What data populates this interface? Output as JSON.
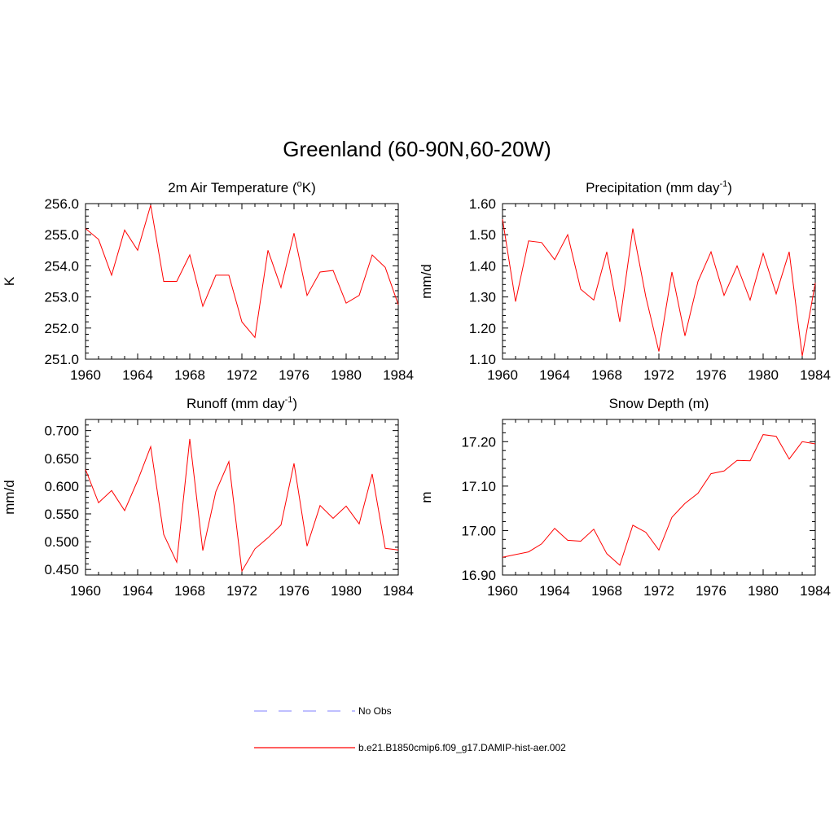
{
  "figure": {
    "title": "Greenland (60-90N,60-20W)"
  },
  "legend": {
    "items": [
      {
        "label": "No Obs",
        "color": "#9999ff",
        "style": "dashed"
      },
      {
        "label": "b.e21.B1850cmip6.f09_g17.DAMIP-hist-aer.002",
        "color": "#ff0000",
        "style": "solid"
      }
    ]
  },
  "chart_data": [
    {
      "type": "line",
      "title": "2m Air Temperature (°K)",
      "title_parts": [
        "2m Air Temperature (",
        "o",
        "K)"
      ],
      "ylabel": "K",
      "xlim": [
        1960,
        1984
      ],
      "ylim": [
        251.0,
        256.0
      ],
      "xticks": [
        "1960",
        "1964",
        "1968",
        "1972",
        "1976",
        "1980",
        "1984"
      ],
      "yticks": [
        "251.0",
        "252.0",
        "253.0",
        "254.0",
        "255.0",
        "256.0"
      ],
      "series": [
        {
          "color": "#ff0000",
          "x": [
            1960,
            1961,
            1962,
            1963,
            1964,
            1965,
            1966,
            1967,
            1968,
            1969,
            1970,
            1971,
            1972,
            1973,
            1974,
            1975,
            1976,
            1977,
            1978,
            1979,
            1980,
            1981,
            1982,
            1983,
            1984
          ],
          "y": [
            255.2,
            254.85,
            253.7,
            255.15,
            254.5,
            255.95,
            253.5,
            253.5,
            254.35,
            252.7,
            253.7,
            253.7,
            252.2,
            251.7,
            254.5,
            253.3,
            255.05,
            253.05,
            253.8,
            253.85,
            252.8,
            253.05,
            254.35,
            253.95,
            252.75
          ]
        }
      ]
    },
    {
      "type": "line",
      "title": "Precipitation (mm day-1)",
      "title_parts": [
        "Precipitation (mm day",
        "-1",
        ")"
      ],
      "ylabel": "mm/d",
      "xlim": [
        1960,
        1984
      ],
      "ylim": [
        1.1,
        1.6
      ],
      "xticks": [
        "1960",
        "1964",
        "1968",
        "1972",
        "1976",
        "1980",
        "1984"
      ],
      "yticks": [
        "1.10",
        "1.20",
        "1.30",
        "1.40",
        "1.50",
        "1.60"
      ],
      "series": [
        {
          "color": "#ff0000",
          "x": [
            1960,
            1961,
            1962,
            1963,
            1964,
            1965,
            1966,
            1967,
            1968,
            1969,
            1970,
            1971,
            1972,
            1973,
            1974,
            1975,
            1976,
            1977,
            1978,
            1979,
            1980,
            1981,
            1982,
            1983,
            1984
          ],
          "y": [
            1.55,
            1.285,
            1.48,
            1.475,
            1.42,
            1.5,
            1.325,
            1.29,
            1.445,
            1.22,
            1.52,
            1.3,
            1.125,
            1.38,
            1.175,
            1.35,
            1.445,
            1.305,
            1.4,
            1.29,
            1.44,
            1.31,
            1.445,
            1.11,
            1.345
          ]
        }
      ]
    },
    {
      "type": "line",
      "title": "Runoff (mm day-1)",
      "title_parts": [
        "Runoff (mm day",
        "-1",
        ")"
      ],
      "ylabel": "mm/d",
      "xlim": [
        1960,
        1984
      ],
      "ylim": [
        0.44,
        0.72
      ],
      "xticks": [
        "1960",
        "1964",
        "1968",
        "1972",
        "1976",
        "1980",
        "1984"
      ],
      "yticks": [
        "0.450",
        "0.500",
        "0.550",
        "0.600",
        "0.650",
        "0.700"
      ],
      "series": [
        {
          "color": "#ff0000",
          "x": [
            1960,
            1961,
            1962,
            1963,
            1964,
            1965,
            1966,
            1967,
            1968,
            1969,
            1970,
            1971,
            1972,
            1973,
            1974,
            1975,
            1976,
            1977,
            1978,
            1979,
            1980,
            1981,
            1982,
            1983,
            1984
          ],
          "y": [
            0.63,
            0.57,
            0.592,
            0.556,
            0.61,
            0.671,
            0.513,
            0.463,
            0.685,
            0.484,
            0.59,
            0.644,
            0.447,
            0.487,
            0.507,
            0.53,
            0.641,
            0.492,
            0.565,
            0.542,
            0.564,
            0.532,
            0.622,
            0.488,
            0.485
          ]
        }
      ]
    },
    {
      "type": "line",
      "title": "Snow Depth (m)",
      "title_parts": [
        "Snow Depth (m)"
      ],
      "ylabel": "m",
      "xlim": [
        1960,
        1984
      ],
      "ylim": [
        16.9,
        17.25
      ],
      "xticks": [
        "1960",
        "1964",
        "1968",
        "1972",
        "1976",
        "1980",
        "1984"
      ],
      "yticks": [
        "16.90",
        "17.00",
        "17.10",
        "17.20"
      ],
      "series": [
        {
          "color": "#ff0000",
          "x": [
            1960,
            1961,
            1962,
            1963,
            1964,
            1965,
            1966,
            1967,
            1968,
            1969,
            1970,
            1971,
            1972,
            1973,
            1974,
            1975,
            1976,
            1977,
            1978,
            1979,
            1980,
            1981,
            1982,
            1983,
            1984
          ],
          "y": [
            16.94,
            16.946,
            16.952,
            16.97,
            17.005,
            16.978,
            16.976,
            17.003,
            16.948,
            16.922,
            17.012,
            16.996,
            16.956,
            17.03,
            17.061,
            17.084,
            17.128,
            17.134,
            17.158,
            17.157,
            17.216,
            17.212,
            17.161,
            17.2,
            17.195
          ]
        }
      ]
    }
  ]
}
